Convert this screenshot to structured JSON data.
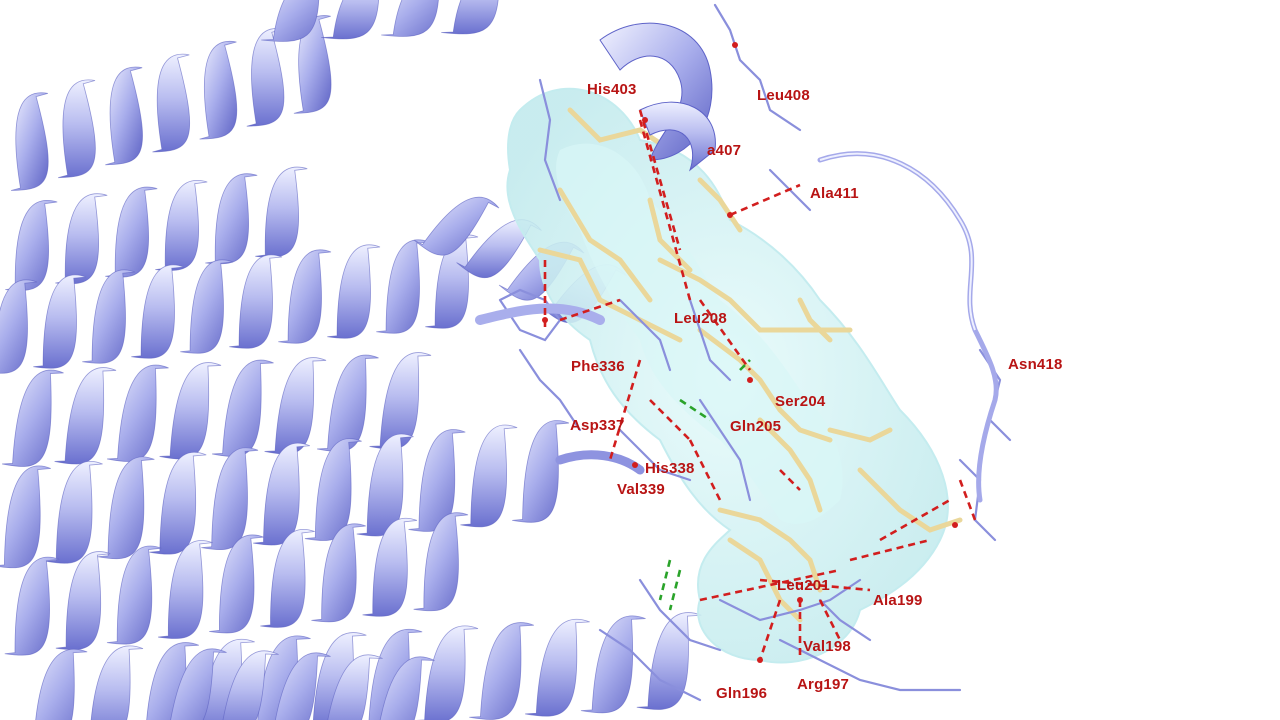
{
  "scene": {
    "description_colors": {
      "protein_ribbon": "#9ea4e8",
      "protein_ribbon_dark": "#5e63c8",
      "protein_ribbon_light": "#eef0ff",
      "residue_sticks": "#8a8fdc",
      "ligand_sticks": "#ecdca0",
      "pocket_surface": "#d2f1f1",
      "hbond_red": "#d21e1e",
      "hbond_green": "#2aa32a",
      "label_color": "#b81414"
    }
  },
  "residue_labels": [
    {
      "key": "his403",
      "text": "His403"
    },
    {
      "key": "leu408",
      "text": "Leu408"
    },
    {
      "key": "a407",
      "text": "a407"
    },
    {
      "key": "ala411",
      "text": "Ala411"
    },
    {
      "key": "leu208",
      "text": "Leu208"
    },
    {
      "key": "asn418",
      "text": "Asn418"
    },
    {
      "key": "phe336",
      "text": "Phe336"
    },
    {
      "key": "ser204",
      "text": "Ser204"
    },
    {
      "key": "asp337",
      "text": "Asp337"
    },
    {
      "key": "gln205",
      "text": "Gln205"
    },
    {
      "key": "his338",
      "text": "His338"
    },
    {
      "key": "val339",
      "text": "Val339"
    },
    {
      "key": "leu201",
      "text": "Leu201"
    },
    {
      "key": "ala199",
      "text": "Ala199"
    },
    {
      "key": "val198",
      "text": "Val198"
    },
    {
      "key": "arg197",
      "text": "Arg197"
    },
    {
      "key": "gln196",
      "text": "Gln196"
    }
  ]
}
